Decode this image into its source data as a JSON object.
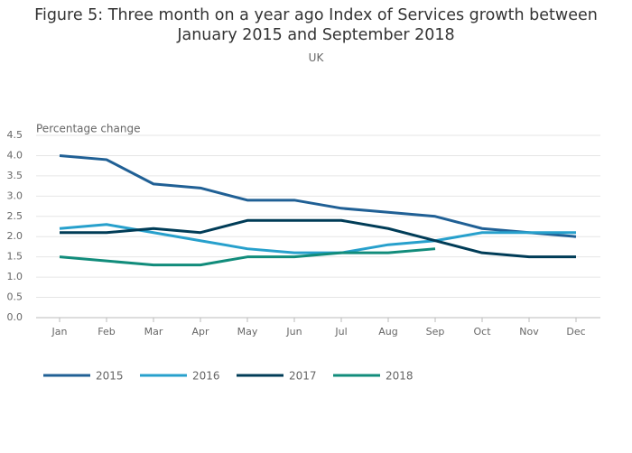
{
  "chart_data": {
    "type": "line",
    "title": "Figure 5: Three month on a year ago Index of Services growth between January 2015 and September 2018",
    "subtitle": "UK",
    "y_label": "Percentage change",
    "categories": [
      "Jan",
      "Feb",
      "Mar",
      "Apr",
      "May",
      "Jun",
      "Jul",
      "Aug",
      "Sep",
      "Oct",
      "Nov",
      "Dec"
    ],
    "series": [
      {
        "name": "2015",
        "color": "#206095",
        "values": [
          4.0,
          3.9,
          3.3,
          3.2,
          2.9,
          2.9,
          2.7,
          2.6,
          2.5,
          2.2,
          2.1,
          2.0
        ]
      },
      {
        "name": "2016",
        "color": "#27a0cc",
        "values": [
          2.2,
          2.3,
          2.1,
          1.9,
          1.7,
          1.6,
          1.6,
          1.8,
          1.9,
          2.1,
          2.1,
          2.1
        ]
      },
      {
        "name": "2017",
        "color": "#003c57",
        "values": [
          2.1,
          2.1,
          2.2,
          2.1,
          2.4,
          2.4,
          2.4,
          2.2,
          1.9,
          1.6,
          1.5,
          1.5
        ]
      },
      {
        "name": "2018",
        "color": "#118c7b",
        "values": [
          1.5,
          1.4,
          1.3,
          1.3,
          1.5,
          1.5,
          1.6,
          1.6,
          1.7,
          null,
          null,
          null
        ]
      }
    ],
    "ylim": [
      0,
      4.5
    ],
    "yticks": [
      {
        "value": 0,
        "label": "0.0"
      },
      0.5,
      {
        "value": 1,
        "label": "1.0"
      },
      1.5,
      {
        "value": 2,
        "label": "2.0"
      },
      2.5,
      {
        "value": 3,
        "label": "3.0"
      },
      3.5,
      {
        "value": 4,
        "label": "4.0"
      },
      4.5
    ],
    "grid": true,
    "legend": "bottom"
  }
}
